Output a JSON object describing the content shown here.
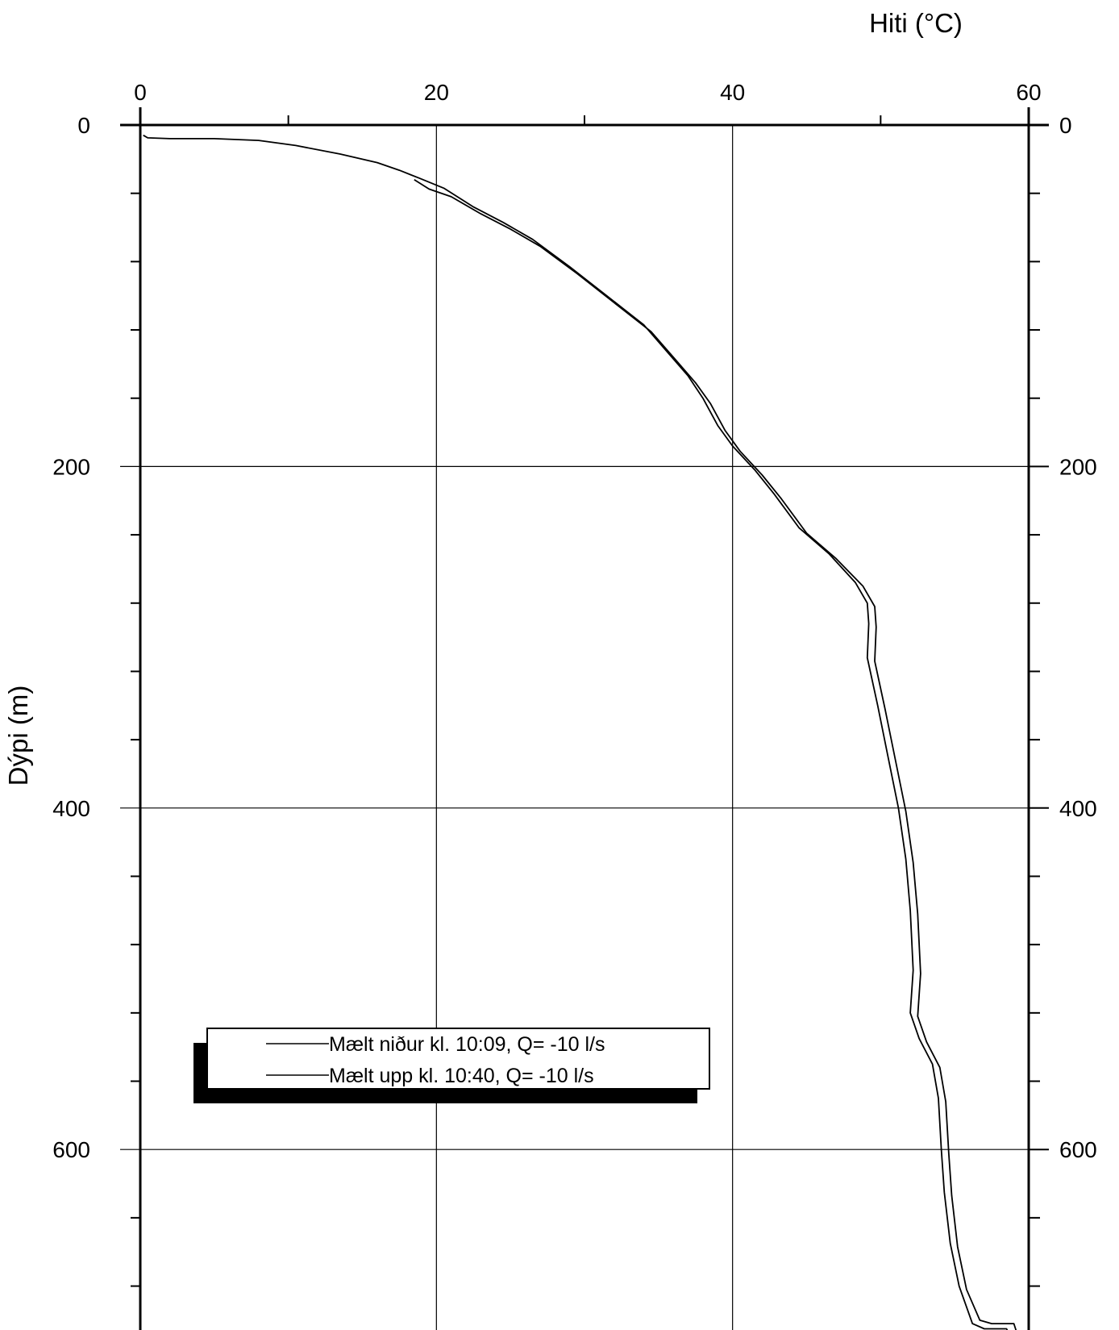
{
  "chart_data": {
    "type": "line",
    "xlabel": "Hiti (°C)",
    "ylabel": "Dýpi (m)",
    "xlim": [
      0,
      60
    ],
    "ylim": [
      0,
      710
    ],
    "y_inverted": true,
    "x_axis_position": "top",
    "x_ticks": [
      0,
      20,
      40,
      60
    ],
    "x_minor_ticks": [
      10,
      30,
      50
    ],
    "y_ticks": [
      0,
      200,
      400,
      600
    ],
    "y_minor_ticks": [
      40,
      80,
      120,
      160,
      240,
      280,
      320,
      360,
      440,
      480,
      520,
      560,
      640,
      680
    ],
    "grid": true,
    "legend_position": "lower-left",
    "series": [
      {
        "name": "Mælt niður kl. 10:09, Q= -10 l/s",
        "color": "#000000",
        "points": [
          [
            0.2,
            6
          ],
          [
            0.5,
            7.5
          ],
          [
            2,
            8
          ],
          [
            5,
            8
          ],
          [
            8,
            9
          ],
          [
            10.5,
            12
          ],
          [
            13.5,
            17
          ],
          [
            16,
            22
          ],
          [
            17.5,
            26.5
          ],
          [
            18.8,
            31
          ],
          [
            20.5,
            37
          ],
          [
            22.5,
            48
          ],
          [
            24.5,
            57
          ],
          [
            26.5,
            67
          ],
          [
            29,
            83
          ],
          [
            31.5,
            100
          ],
          [
            34,
            117
          ],
          [
            35.5,
            132
          ],
          [
            37,
            147
          ],
          [
            38,
            160
          ],
          [
            39,
            176
          ],
          [
            40,
            188
          ],
          [
            41.5,
            202
          ],
          [
            42.8,
            216
          ],
          [
            44.5,
            236
          ],
          [
            46.5,
            251
          ],
          [
            48.3,
            268
          ],
          [
            49.1,
            280
          ],
          [
            49.2,
            292
          ],
          [
            49.1,
            312
          ],
          [
            49.8,
            340
          ],
          [
            50.5,
            370
          ],
          [
            51.2,
            400
          ],
          [
            51.7,
            430
          ],
          [
            52.0,
            460
          ],
          [
            52.2,
            495
          ],
          [
            52.0,
            520
          ],
          [
            52.6,
            535
          ],
          [
            53.5,
            550
          ],
          [
            53.9,
            570
          ],
          [
            54.1,
            600
          ],
          [
            54.3,
            625
          ],
          [
            54.7,
            655
          ],
          [
            55.3,
            680
          ],
          [
            56.2,
            702
          ],
          [
            57.0,
            705
          ],
          [
            58.5,
            705
          ],
          [
            58.8,
            710
          ]
        ]
      },
      {
        "name": "Mælt upp kl. 10:40, Q= -10 l/s",
        "color": "#000000",
        "points": [
          [
            18.5,
            32
          ],
          [
            19.5,
            37.5
          ],
          [
            21,
            42
          ],
          [
            23,
            52
          ],
          [
            25,
            61
          ],
          [
            27,
            71
          ],
          [
            29.5,
            87
          ],
          [
            32,
            104
          ],
          [
            34.5,
            121
          ],
          [
            36,
            136
          ],
          [
            37.5,
            151
          ],
          [
            38.5,
            163
          ],
          [
            39.5,
            179
          ],
          [
            40.5,
            191
          ],
          [
            42.0,
            205
          ],
          [
            43.3,
            219
          ],
          [
            45.0,
            239
          ],
          [
            47.0,
            254
          ],
          [
            48.8,
            270
          ],
          [
            49.6,
            282
          ],
          [
            49.7,
            294
          ],
          [
            49.6,
            314
          ],
          [
            50.3,
            342
          ],
          [
            51.0,
            372
          ],
          [
            51.7,
            402
          ],
          [
            52.2,
            432
          ],
          [
            52.5,
            462
          ],
          [
            52.7,
            497
          ],
          [
            52.5,
            522
          ],
          [
            53.1,
            537
          ],
          [
            54.0,
            552
          ],
          [
            54.4,
            572
          ],
          [
            54.6,
            602
          ],
          [
            54.8,
            627
          ],
          [
            55.2,
            657
          ],
          [
            55.8,
            682
          ],
          [
            56.7,
            700
          ],
          [
            57.5,
            702
          ],
          [
            59,
            702
          ],
          [
            59.3,
            710
          ]
        ]
      }
    ]
  }
}
